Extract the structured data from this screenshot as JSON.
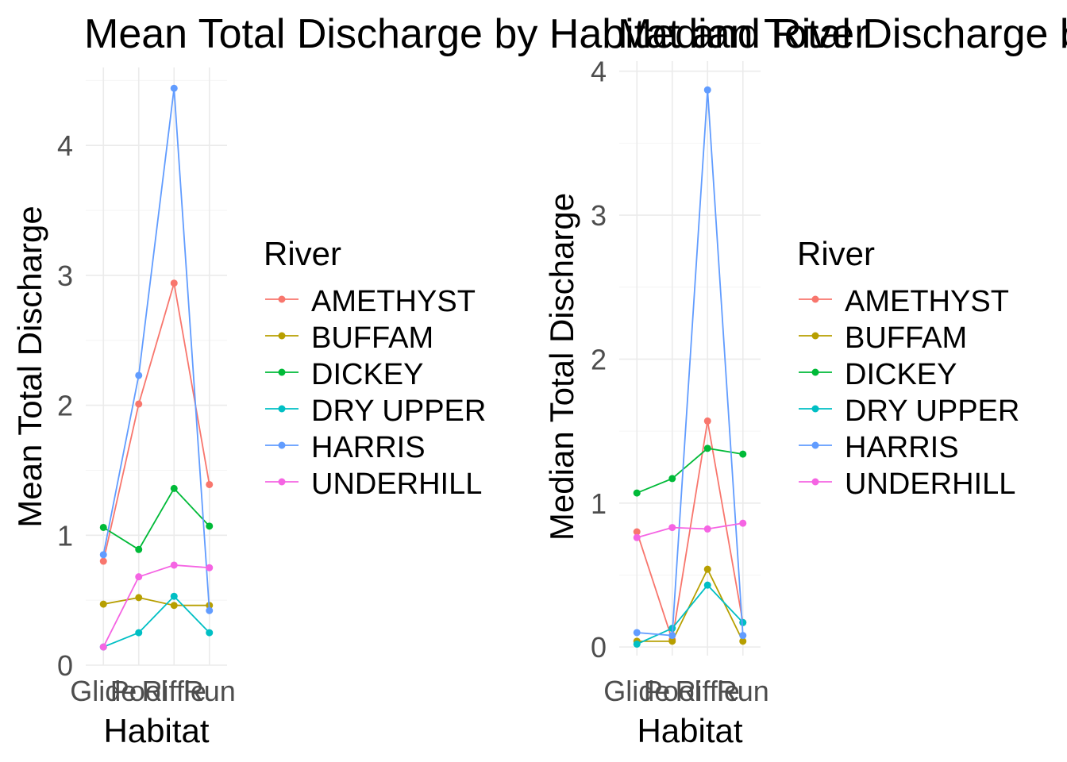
{
  "chart_data": [
    {
      "type": "line",
      "title": "Mean Total Discharge by Habitat and River",
      "xlabel": "Habitat",
      "ylabel": "Mean Total Discharge",
      "categories": [
        "Glide",
        "Pool",
        "Riffle",
        "Run"
      ],
      "ylim": [
        0,
        4.6
      ],
      "yticks": [
        0,
        1,
        2,
        3,
        4
      ],
      "grid": true,
      "legend_title": "River",
      "legend_position": "right",
      "series": [
        {
          "name": "AMETHYST",
          "color": "#F8766D",
          "values": [
            0.8,
            2.01,
            2.94,
            1.39
          ]
        },
        {
          "name": "BUFFAM",
          "color": "#B79F00",
          "values": [
            0.47,
            0.52,
            0.46,
            0.46
          ]
        },
        {
          "name": "DICKEY",
          "color": "#00BA38",
          "values": [
            1.06,
            0.89,
            1.36,
            1.07
          ]
        },
        {
          "name": "DRY UPPER",
          "color": "#00BFC4",
          "values": [
            0.14,
            0.25,
            0.53,
            0.25
          ]
        },
        {
          "name": "HARRIS",
          "color": "#619CFF",
          "values": [
            0.85,
            2.23,
            4.44,
            0.42
          ]
        },
        {
          "name": "UNDERHILL",
          "color": "#F564E3",
          "values": [
            0.14,
            0.68,
            0.77,
            0.75
          ]
        }
      ]
    },
    {
      "type": "line",
      "title": "Median Total Discharge by Habitat and River",
      "xlabel": "Habitat",
      "ylabel": "Median Total Discharge",
      "categories": [
        "Glide",
        "Pool",
        "Riffle",
        "Run"
      ],
      "ylim": [
        -0.06,
        4.07
      ],
      "yticks": [
        0,
        1,
        2,
        3,
        4
      ],
      "grid": true,
      "legend_title": "River",
      "legend_position": "right",
      "series": [
        {
          "name": "AMETHYST",
          "color": "#F8766D",
          "values": [
            0.8,
            0.05,
            1.57,
            0.17
          ]
        },
        {
          "name": "BUFFAM",
          "color": "#B79F00",
          "values": [
            0.04,
            0.04,
            0.54,
            0.04
          ]
        },
        {
          "name": "DICKEY",
          "color": "#00BA38",
          "values": [
            1.07,
            1.17,
            1.38,
            1.34
          ]
        },
        {
          "name": "DRY UPPER",
          "color": "#00BFC4",
          "values": [
            0.02,
            0.13,
            0.43,
            0.17
          ]
        },
        {
          "name": "HARRIS",
          "color": "#619CFF",
          "values": [
            0.1,
            0.08,
            3.87,
            0.08
          ]
        },
        {
          "name": "UNDERHILL",
          "color": "#F564E3",
          "values": [
            0.76,
            0.83,
            0.82,
            0.86
          ]
        }
      ]
    }
  ]
}
